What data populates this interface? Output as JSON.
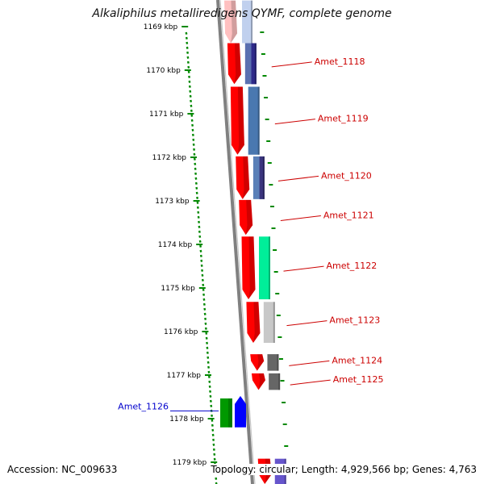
{
  "title": "Alkaliphilus metalliredigens QYMF, complete genome",
  "footer": {
    "accession": "Accession: NC_009633",
    "summary": "Topology: circular; Length: 4,929,566 bp; Genes: 4,763"
  },
  "colors": {
    "forward_cds": "#ff0000",
    "label_red": "#cc0000",
    "label_blue": "#0000cc",
    "tick": "#008800",
    "backbone": "#808080"
  },
  "ruler": [
    {
      "label": "1169 kbp",
      "kbp": 1169
    },
    {
      "label": "1170 kbp",
      "kbp": 1170
    },
    {
      "label": "1171 kbp",
      "kbp": 1171
    },
    {
      "label": "1172 kbp",
      "kbp": 1172
    },
    {
      "label": "1173 kbp",
      "kbp": 1173
    },
    {
      "label": "1174 kbp",
      "kbp": 1174
    },
    {
      "label": "1175 kbp",
      "kbp": 1175
    },
    {
      "label": "1176 kbp",
      "kbp": 1176
    },
    {
      "label": "1177 kbp",
      "kbp": 1177
    },
    {
      "label": "1178 kbp",
      "kbp": 1178
    },
    {
      "label": "1179 kbp",
      "kbp": 1179
    }
  ],
  "genes": [
    {
      "label": "Amet_1118",
      "start_kbp": 1169.38,
      "end_kbp": 1170.32,
      "strand": "+",
      "color": "#ff0000",
      "sec_color": "#5a6fb0",
      "sec_color2": "#2e2a8a"
    },
    {
      "label": "Amet_1119",
      "start_kbp": 1170.38,
      "end_kbp": 1171.94,
      "strand": "+",
      "color": "#ff0000",
      "sec_color": "#4a78b0",
      "sec_color2": "#4a78b0"
    },
    {
      "label": "Amet_1120",
      "start_kbp": 1171.98,
      "end_kbp": 1172.96,
      "strand": "+",
      "color": "#ff0000",
      "sec_color": "#5a80b8",
      "sec_color2": "#3a347e"
    },
    {
      "label": "Amet_1121",
      "start_kbp": 1172.98,
      "end_kbp": 1173.78,
      "strand": "+",
      "color": "#ff0000",
      "sec_color": "",
      "sec_color2": ""
    },
    {
      "label": "Amet_1122",
      "start_kbp": 1173.82,
      "end_kbp": 1175.26,
      "strand": "+",
      "color": "#ff0000",
      "sec_color": "#00ee99",
      "sec_color2": "#00ee99"
    },
    {
      "label": "Amet_1123",
      "start_kbp": 1175.32,
      "end_kbp": 1176.26,
      "strand": "+",
      "color": "#ff0000",
      "sec_color": "#c8c8c8",
      "sec_color2": "#c8c8c8"
    },
    {
      "label": "Amet_1124",
      "start_kbp": 1176.52,
      "end_kbp": 1176.9,
      "strand": "+",
      "color": "#ff0000",
      "sec_color": "#666666",
      "sec_color2": "#666666"
    },
    {
      "label": "Amet_1125",
      "start_kbp": 1176.96,
      "end_kbp": 1177.34,
      "strand": "+",
      "color": "#ff0000",
      "sec_color": "#666666",
      "sec_color2": "#666666"
    },
    {
      "label": "",
      "start_kbp": 1178.92,
      "end_kbp": 1179.6,
      "strand": "+",
      "color": "#ff0000",
      "sec_color": "#6655cc",
      "sec_color2": "#6655cc"
    }
  ],
  "reverse_genes": [
    {
      "label": "Amet_1126",
      "start_kbp": 1177.48,
      "end_kbp": 1178.2,
      "strand": "-",
      "color": "#009900",
      "sec_color": "#0000ff"
    }
  ],
  "faded_gene": {
    "start_kbp": 1168.4,
    "end_kbp": 1169.38,
    "color": "#ffc0c0",
    "sec_color": "#c0d0ee"
  }
}
